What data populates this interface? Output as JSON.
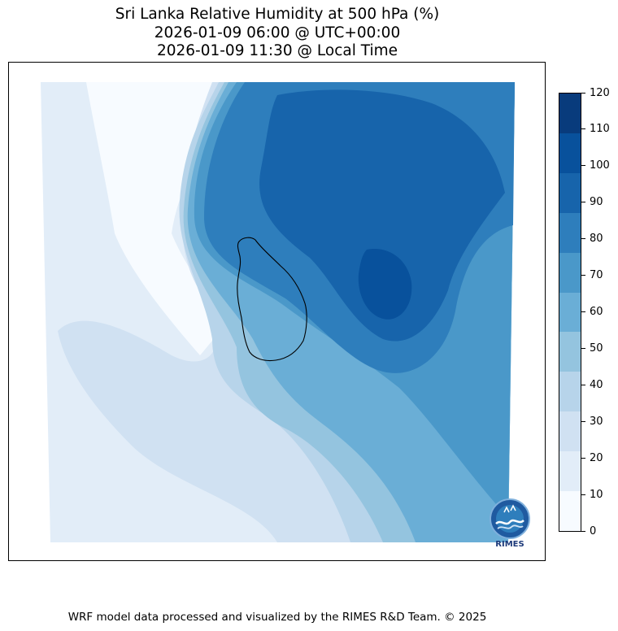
{
  "title": {
    "line1": "Sri Lanka Relative Humidity at 500 hPa (%)",
    "line2": "2026-01-09 06:00 @ UTC+00:00",
    "line3": "2026-01-09 11:30 @ Local Time"
  },
  "colorbar": {
    "levels": [
      "0",
      "10",
      "20",
      "30",
      "40",
      "50",
      "60",
      "70",
      "80",
      "90",
      "100",
      "110",
      "120"
    ],
    "colors": [
      "#f7fbff",
      "#e2edf8",
      "#d0e1f2",
      "#b7d4ea",
      "#94c4df",
      "#6aaed6",
      "#4a98c9",
      "#2e7ebc",
      "#1764ab",
      "#08519c",
      "#083b7c"
    ]
  },
  "logo": {
    "text": "RIMES"
  },
  "footer": "WRF model data processed and visualized by the RIMES R&D Team. © 2025"
}
